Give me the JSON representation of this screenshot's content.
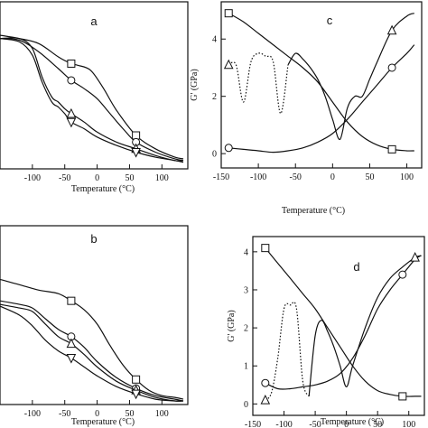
{
  "chart_data": [
    {
      "panel": "a",
      "type": "line",
      "xlabel": "Temperature (°C)",
      "ylabel": "",
      "xlim": [
        -150,
        140
      ],
      "ylim": [
        0,
        1
      ],
      "xticks": [
        -100,
        -50,
        0,
        50,
        100
      ],
      "xtick_labels": [
        "-100",
        "-50",
        "0",
        "50",
        "100"
      ],
      "yticks": [],
      "series": [
        {
          "marker": "square",
          "x": [
            -150,
            -120,
            -90,
            -60,
            -40,
            -30,
            -10,
            10,
            30,
            60,
            90,
            120,
            133
          ],
          "y": [
            0.8,
            0.78,
            0.75,
            0.67,
            0.63,
            0.62,
            0.59,
            0.48,
            0.35,
            0.2,
            0.12,
            0.07,
            0.06
          ],
          "marker_x": [
            -40,
            60
          ]
        },
        {
          "marker": "circle",
          "x": [
            -150,
            -120,
            -90,
            -60,
            -40,
            -20,
            0,
            20,
            40,
            60,
            90,
            120,
            133
          ],
          "y": [
            0.78,
            0.77,
            0.7,
            0.6,
            0.53,
            0.48,
            0.42,
            0.33,
            0.24,
            0.16,
            0.1,
            0.06,
            0.05
          ],
          "marker_x": [
            -40,
            60
          ]
        },
        {
          "marker": "triangle",
          "x": [
            -150,
            -120,
            -100,
            -85,
            -70,
            -60,
            -50,
            -40,
            -20,
            0,
            30,
            60,
            90,
            120,
            133
          ],
          "y": [
            0.78,
            0.78,
            0.72,
            0.55,
            0.43,
            0.4,
            0.36,
            0.33,
            0.28,
            0.22,
            0.16,
            0.12,
            0.08,
            0.05,
            0.05
          ],
          "marker_x": [
            -40,
            60
          ]
        },
        {
          "marker": "triangle-down",
          "x": [
            -150,
            -120,
            -100,
            -85,
            -70,
            -60,
            -50,
            -40,
            -20,
            0,
            30,
            60,
            90,
            120,
            133
          ],
          "y": [
            0.78,
            0.76,
            0.68,
            0.52,
            0.4,
            0.37,
            0.33,
            0.28,
            0.24,
            0.19,
            0.14,
            0.1,
            0.07,
            0.05,
            0.04
          ],
          "marker_x": [
            -40,
            60
          ]
        }
      ]
    },
    {
      "panel": "b",
      "type": "line",
      "xlabel": "Temperature (°C)",
      "ylabel": "",
      "xlim": [
        -150,
        140
      ],
      "ylim": [
        0,
        1
      ],
      "xticks": [
        -100,
        -50,
        0,
        50,
        100
      ],
      "xtick_labels": [
        "-100",
        "-50",
        "0",
        "50",
        "100"
      ],
      "yticks": [],
      "series": [
        {
          "marker": "square",
          "x": [
            -150,
            -120,
            -90,
            -60,
            -40,
            -20,
            0,
            20,
            40,
            60,
            80,
            100,
            120,
            133
          ],
          "y": [
            0.7,
            0.67,
            0.64,
            0.62,
            0.58,
            0.53,
            0.45,
            0.33,
            0.22,
            0.14,
            0.08,
            0.05,
            0.04,
            0.03
          ],
          "marker_x": [
            -40,
            60
          ]
        },
        {
          "marker": "circle",
          "x": [
            -150,
            -120,
            -100,
            -80,
            -60,
            -40,
            -20,
            0,
            30,
            60,
            90,
            120,
            133
          ],
          "y": [
            0.58,
            0.56,
            0.54,
            0.48,
            0.42,
            0.38,
            0.32,
            0.24,
            0.15,
            0.09,
            0.05,
            0.03,
            0.02
          ],
          "marker_x": [
            -40,
            60
          ]
        },
        {
          "marker": "triangle",
          "x": [
            -150,
            -120,
            -100,
            -80,
            -60,
            -40,
            -20,
            0,
            30,
            60,
            90,
            120,
            133
          ],
          "y": [
            0.56,
            0.54,
            0.52,
            0.45,
            0.38,
            0.34,
            0.28,
            0.21,
            0.13,
            0.08,
            0.04,
            0.02,
            0.02
          ],
          "marker_x": [
            -40,
            60
          ]
        },
        {
          "marker": "triangle-down",
          "x": [
            -150,
            -120,
            -100,
            -80,
            -60,
            -40,
            -20,
            0,
            30,
            60,
            90,
            120,
            133
          ],
          "y": [
            0.55,
            0.5,
            0.44,
            0.36,
            0.3,
            0.26,
            0.21,
            0.16,
            0.1,
            0.06,
            0.03,
            0.02,
            0.02
          ],
          "marker_x": [
            -40,
            60
          ]
        }
      ]
    },
    {
      "panel": "c",
      "type": "line",
      "xlabel": "Temperature (°C)",
      "ylabel": "G' (GPa)",
      "xlim": [
        -150,
        120
      ],
      "ylim": [
        -0.5,
        5.3
      ],
      "xticks": [
        -150,
        -100,
        -50,
        0,
        50,
        100
      ],
      "xtick_labels": [
        "-150",
        "-100",
        "-50",
        "0",
        "50",
        "100"
      ],
      "yticks": [
        0,
        2,
        4
      ],
      "ytick_labels": [
        "0",
        "2",
        "4"
      ],
      "series": [
        {
          "marker": "square",
          "style": "solid",
          "x": [
            -140,
            -120,
            -100,
            -80,
            -60,
            -40,
            -20,
            0,
            20,
            40,
            60,
            80,
            100,
            110
          ],
          "y": [
            4.9,
            4.6,
            4.2,
            3.8,
            3.4,
            3.0,
            2.5,
            1.8,
            1.1,
            0.6,
            0.3,
            0.15,
            0.1,
            0.1
          ],
          "marker_x": [
            -140,
            80
          ]
        },
        {
          "marker": "circle",
          "style": "solid",
          "x": [
            -140,
            -120,
            -100,
            -80,
            -60,
            -40,
            -20,
            0,
            20,
            40,
            60,
            80,
            100,
            110
          ],
          "y": [
            0.2,
            0.15,
            0.1,
            0.05,
            0.1,
            0.2,
            0.4,
            0.7,
            1.2,
            1.8,
            2.4,
            3.0,
            3.5,
            3.8
          ],
          "marker_x": [
            -140,
            80
          ]
        },
        {
          "marker": "triangle",
          "style": "mixed",
          "x": [
            -140,
            -130,
            -120,
            -110,
            -100,
            -90,
            -80,
            -70,
            -60,
            -50,
            -40,
            -30,
            -20,
            -10,
            0,
            10,
            20,
            30,
            40,
            50,
            60,
            80,
            100,
            110
          ],
          "y": [
            3.1,
            3.1,
            1.8,
            3.2,
            3.5,
            3.4,
            3.2,
            1.4,
            3.1,
            3.5,
            3.3,
            3.0,
            2.6,
            2.0,
            1.2,
            0.5,
            1.6,
            2.0,
            2.0,
            2.6,
            3.2,
            4.3,
            4.8,
            4.9
          ],
          "dotted_x_range": [
            -140,
            -55
          ],
          "marker_x": [
            -140,
            80
          ]
        }
      ]
    },
    {
      "panel": "d",
      "type": "line",
      "xlabel": "Temperature (°C)",
      "ylabel": "G' (GPa)",
      "xlim": [
        -150,
        125
      ],
      "ylim": [
        -0.3,
        4.4
      ],
      "xticks": [
        -150,
        -100,
        -50,
        0,
        50,
        100
      ],
      "xtick_labels": [
        "-150",
        "-100",
        "-50",
        "0",
        "50",
        "100"
      ],
      "yticks": [
        0,
        1,
        2,
        3,
        4
      ],
      "ytick_labels": [
        "0",
        "1",
        "2",
        "3",
        "4"
      ],
      "series": [
        {
          "marker": "square",
          "style": "solid",
          "x": [
            -130,
            -110,
            -90,
            -70,
            -50,
            -30,
            -10,
            10,
            30,
            50,
            70,
            90,
            110,
            120
          ],
          "y": [
            4.1,
            3.7,
            3.3,
            2.9,
            2.5,
            2.0,
            1.5,
            1.0,
            0.6,
            0.35,
            0.25,
            0.2,
            0.2,
            0.2
          ],
          "marker_x": [
            -130,
            90
          ]
        },
        {
          "marker": "circle",
          "style": "solid",
          "x": [
            -130,
            -110,
            -90,
            -70,
            -50,
            -30,
            -10,
            10,
            30,
            50,
            70,
            90,
            110,
            120
          ],
          "y": [
            0.55,
            0.4,
            0.4,
            0.45,
            0.5,
            0.6,
            0.8,
            1.2,
            1.8,
            2.5,
            3.0,
            3.4,
            3.8,
            3.9
          ],
          "marker_x": [
            -130,
            90
          ]
        },
        {
          "marker": "triangle",
          "style": "mixed",
          "x": [
            -130,
            -120,
            -110,
            -100,
            -90,
            -80,
            -70,
            -60,
            -50,
            -40,
            -30,
            -20,
            -10,
            0,
            10,
            30,
            50,
            70,
            90,
            110,
            120
          ],
          "y": [
            0.1,
            0.3,
            1.2,
            2.5,
            2.6,
            2.5,
            0.6,
            0.2,
            1.8,
            2.2,
            1.9,
            1.5,
            1.0,
            0.45,
            1.0,
            2.0,
            2.8,
            3.3,
            3.6,
            3.85,
            3.9
          ],
          "dotted_x_range": [
            -130,
            -55
          ],
          "marker_x": [
            -130,
            110
          ]
        }
      ]
    }
  ]
}
